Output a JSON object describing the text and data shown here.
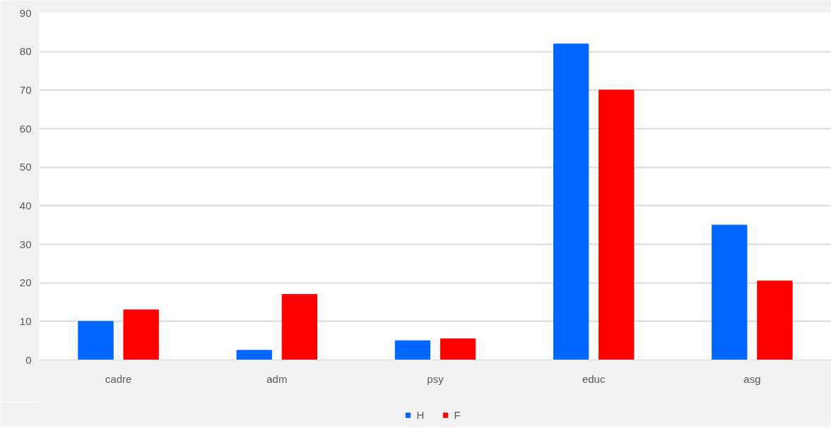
{
  "chart_data": {
    "type": "bar",
    "categories": [
      "cadre",
      "adm",
      "psy",
      "educ",
      "asg"
    ],
    "series": [
      {
        "name": "H",
        "color": "#0066ff",
        "values": [
          10,
          2.5,
          5,
          82,
          35
        ]
      },
      {
        "name": "F",
        "color": "#ff0000",
        "values": [
          13,
          17,
          5.5,
          70,
          20.5
        ]
      }
    ],
    "ylim": [
      0,
      90
    ],
    "yticks": [
      0,
      10,
      20,
      30,
      40,
      50,
      60,
      70,
      80,
      90
    ],
    "grid": "y",
    "legend": "bottom"
  }
}
